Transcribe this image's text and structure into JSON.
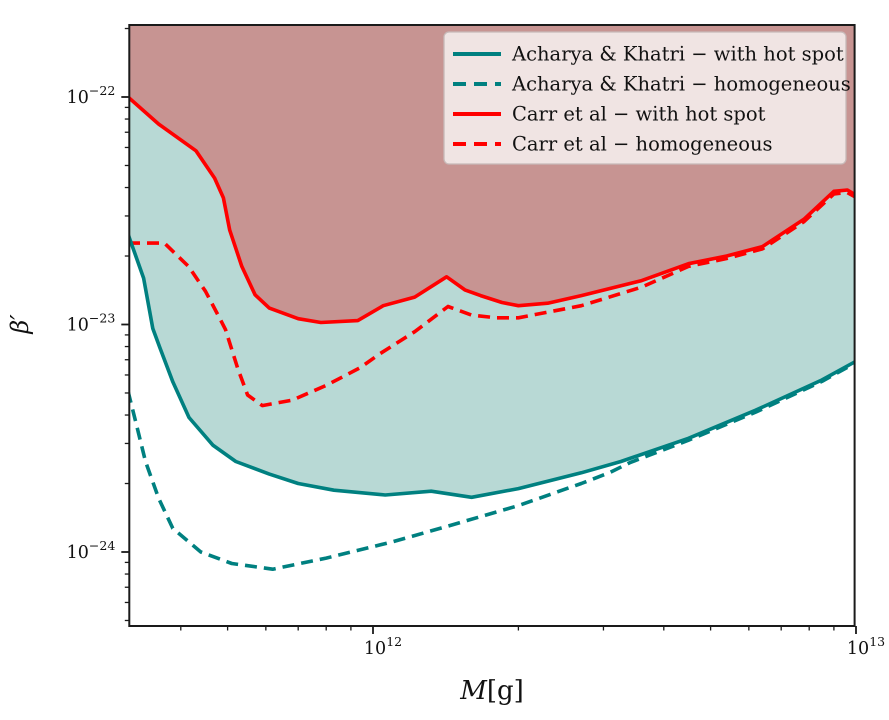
{
  "chart_data": {
    "type": "line",
    "title": "",
    "xlabel": "M[g]",
    "xlabel_m": "M",
    "xlabel_unit": "[g]",
    "ylabel": "β′",
    "x_scale": "log",
    "y_scale": "log",
    "xlim": [
      311000000000.0,
      10000000000000.0
    ],
    "ylim": [
      4.8e-25,
      2.08e-22
    ],
    "grid": false,
    "x_axis": {
      "major_ticks": [
        {
          "value": 1000000000000.0,
          "base": "10",
          "exp": "12"
        },
        {
          "value": 10000000000000.0,
          "base": "10",
          "exp": "13"
        }
      ]
    },
    "y_axis": {
      "major_ticks": [
        {
          "value": 1e-22,
          "base": "10",
          "exp": "−22"
        },
        {
          "value": 1e-23,
          "base": "10",
          "exp": "−23"
        },
        {
          "value": 1e-24,
          "base": "10",
          "exp": "−24"
        }
      ]
    },
    "colors": {
      "teal_line": "#008080",
      "red_line": "#ff0000",
      "teal_fill": "#b8d9d5",
      "red_fill": "#c79492",
      "axis": "#1a1a1a",
      "legend_bg": "#f2e6e5",
      "legend_border": "#c7b9b8",
      "text": "#111111"
    },
    "legend": {
      "position": "upper right",
      "entries": [
        {
          "label": "Acharya & Khatri − with hot spot",
          "color": "#008080",
          "style": "solid"
        },
        {
          "label": "Acharya & Khatri − homogeneous",
          "color": "#008080",
          "style": "dashed"
        },
        {
          "label": "Carr et al − with hot spot",
          "color": "#ff0000",
          "style": "solid"
        },
        {
          "label": "Carr et al − homogeneous",
          "color": "#ff0000",
          "style": "dashed"
        }
      ]
    },
    "series": [
      {
        "name": "Acharya & Khatri − with hot spot",
        "color": "#008080",
        "style": "solid",
        "points": [
          [
            311000000000.0,
            2.5e-23
          ],
          [
            335000000000.0,
            1.6e-23
          ],
          [
            350000000000.0,
            9.6e-24
          ],
          [
            362000000000.0,
            7.9e-24
          ],
          [
            385000000000.0,
            5.6e-24
          ],
          [
            416000000000.0,
            3.9e-24
          ],
          [
            466000000000.0,
            2.95e-24
          ],
          [
            520000000000.0,
            2.5e-24
          ],
          [
            610000000000.0,
            2.2e-24
          ],
          [
            700000000000.0,
            2e-24
          ],
          [
            830000000000.0,
            1.87e-24
          ],
          [
            1060000000000.0,
            1.78e-24
          ],
          [
            1320000000000.0,
            1.85e-24
          ],
          [
            1600000000000.0,
            1.74e-24
          ],
          [
            2000000000000.0,
            1.9e-24
          ],
          [
            2700000000000.0,
            2.23e-24
          ],
          [
            3260000000000.0,
            2.5e-24
          ],
          [
            4500000000000.0,
            3.16e-24
          ],
          [
            6200000000000.0,
            4.2e-24
          ],
          [
            8500000000000.0,
            5.7e-24
          ],
          [
            10000000000000.0,
            6.9e-24
          ]
        ]
      },
      {
        "name": "Acharya & Khatri − homogeneous",
        "color": "#008080",
        "style": "dashed",
        "points": [
          [
            311000000000.0,
            5.1e-24
          ],
          [
            324000000000.0,
            3.6e-24
          ],
          [
            338000000000.0,
            2.5e-24
          ],
          [
            360000000000.0,
            1.72e-24
          ],
          [
            385000000000.0,
            1.27e-24
          ],
          [
            440000000000.0,
            1e-24
          ],
          [
            510000000000.0,
            8.9e-25
          ],
          [
            620000000000.0,
            8.4e-25
          ],
          [
            800000000000.0,
            9.4e-25
          ],
          [
            1100000000000.0,
            1.11e-24
          ],
          [
            1430000000000.0,
            1.3e-24
          ],
          [
            2000000000000.0,
            1.6e-24
          ],
          [
            2700000000000.0,
            2e-24
          ],
          [
            3100000000000.0,
            2.24e-24
          ],
          [
            3400000000000.0,
            2.47e-24
          ],
          [
            4500000000000.0,
            3.1e-24
          ],
          [
            6200000000000.0,
            4.12e-24
          ],
          [
            8500000000000.0,
            5.62e-24
          ],
          [
            10000000000000.0,
            6.8e-24
          ]
        ]
      },
      {
        "name": "Carr et al − with hot spot",
        "color": "#ff0000",
        "style": "solid",
        "points": [
          [
            311000000000.0,
            1e-22
          ],
          [
            360000000000.0,
            7.6e-23
          ],
          [
            430000000000.0,
            5.8e-23
          ],
          [
            470000000000.0,
            4.4e-23
          ],
          [
            490000000000.0,
            3.6e-23
          ],
          [
            505000000000.0,
            2.6e-23
          ],
          [
            535000000000.0,
            1.8e-23
          ],
          [
            570000000000.0,
            1.35e-23
          ],
          [
            610000000000.0,
            1.18e-23
          ],
          [
            700000000000.0,
            1.06e-23
          ],
          [
            780000000000.0,
            1.02e-23
          ],
          [
            930000000000.0,
            1.04e-23
          ],
          [
            1050000000000.0,
            1.21e-23
          ],
          [
            1220000000000.0,
            1.32e-23
          ],
          [
            1420000000000.0,
            1.62e-23
          ],
          [
            1550000000000.0,
            1.42e-23
          ],
          [
            1670000000000.0,
            1.34e-23
          ],
          [
            1850000000000.0,
            1.25e-23
          ],
          [
            2000000000000.0,
            1.21e-23
          ],
          [
            2300000000000.0,
            1.24e-23
          ],
          [
            2700000000000.0,
            1.34e-23
          ],
          [
            3600000000000.0,
            1.56e-23
          ],
          [
            4500000000000.0,
            1.85e-23
          ],
          [
            5400000000000.0,
            2e-23
          ],
          [
            6400000000000.0,
            2.2e-23
          ],
          [
            7800000000000.0,
            2.9e-23
          ],
          [
            9000000000000.0,
            3.85e-23
          ],
          [
            9600000000000.0,
            3.9e-23
          ],
          [
            10000000000000.0,
            3.7e-23
          ]
        ]
      },
      {
        "name": "Carr et al − homogeneous",
        "color": "#ff0000",
        "style": "dashed",
        "points": [
          [
            311000000000.0,
            2.28e-23
          ],
          [
            370000000000.0,
            2.28e-23
          ],
          [
            415000000000.0,
            1.8e-23
          ],
          [
            450000000000.0,
            1.4e-23
          ],
          [
            480000000000.0,
            1.08e-23
          ],
          [
            495000000000.0,
            9.5e-24
          ],
          [
            525000000000.0,
            6.4e-24
          ],
          [
            550000000000.0,
            4.9e-24
          ],
          [
            590000000000.0,
            4.4e-24
          ],
          [
            680000000000.0,
            4.65e-24
          ],
          [
            800000000000.0,
            5.4e-24
          ],
          [
            940000000000.0,
            6.45e-24
          ],
          [
            1030000000000.0,
            7.4e-24
          ],
          [
            1220000000000.0,
            9.3e-24
          ],
          [
            1430000000000.0,
            1.2e-23
          ],
          [
            1600000000000.0,
            1.1e-23
          ],
          [
            1800000000000.0,
            1.07e-23
          ],
          [
            2000000000000.0,
            1.07e-23
          ],
          [
            2700000000000.0,
            1.21e-23
          ],
          [
            3600000000000.0,
            1.46e-23
          ],
          [
            4500000000000.0,
            1.8e-23
          ],
          [
            5400000000000.0,
            1.95e-23
          ],
          [
            6400000000000.0,
            2.15e-23
          ],
          [
            7800000000000.0,
            2.83e-23
          ],
          [
            9000000000000.0,
            3.75e-23
          ],
          [
            9600000000000.0,
            3.8e-23
          ],
          [
            10000000000000.0,
            3.62e-23
          ]
        ]
      }
    ],
    "fills": [
      {
        "name": "excluded-region-acharya",
        "above_series": "Acharya & Khatri − with hot spot",
        "color": "#b8d9d5"
      },
      {
        "name": "excluded-region-carr",
        "above_series": "Carr et al − with hot spot",
        "color": "#c79492"
      }
    ]
  }
}
